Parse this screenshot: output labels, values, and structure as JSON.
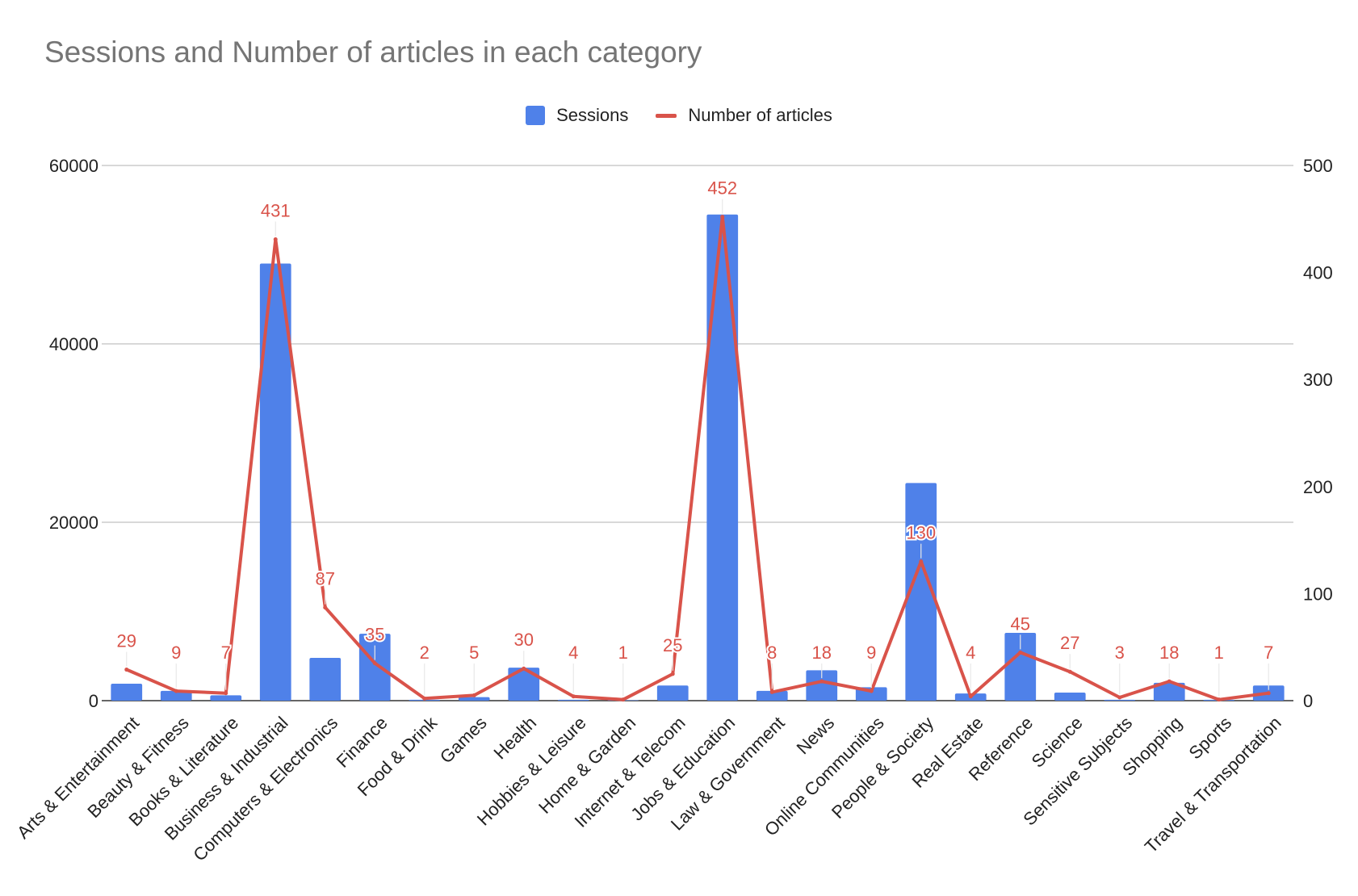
{
  "chart_data": {
    "type": "bar",
    "title": "Sessions and Number of articles in each category",
    "categories": [
      "Arts & Entertainment",
      "Beauty & Fitness",
      "Books & Literature",
      "Business & Industrial",
      "Computers & Electronics",
      "Finance",
      "Food & Drink",
      "Games",
      "Health",
      "Hobbies & Leisure",
      "Home & Garden",
      "Internet & Telecom",
      "Jobs & Education",
      "Law & Government",
      "News",
      "Online Communities",
      "People & Society",
      "Real Estate",
      "Reference",
      "Science",
      "Sensitive Subjects",
      "Shopping",
      "Sports",
      "Travel & Transportation"
    ],
    "series": [
      {
        "name": "Sessions",
        "type": "bar",
        "axis": "left",
        "color": "#4f81e9",
        "values": [
          1900,
          1100,
          600,
          49000,
          4800,
          7500,
          100,
          400,
          3700,
          100,
          50,
          1700,
          54500,
          1100,
          3400,
          1500,
          24400,
          800,
          7600,
          900,
          100,
          2000,
          100,
          1700
        ]
      },
      {
        "name": "Number of articles",
        "type": "line",
        "axis": "right",
        "color": "#d9534a",
        "values": [
          29,
          9,
          7,
          431,
          87,
          35,
          2,
          5,
          30,
          4,
          1,
          25,
          452,
          8,
          18,
          9,
          130,
          4,
          45,
          27,
          3,
          18,
          1,
          7
        ],
        "data_labels": [
          "29",
          "9",
          "7",
          "431",
          "87",
          "35",
          "2",
          "5",
          "30",
          "4",
          "1",
          "25",
          "452",
          "8",
          "18",
          "9",
          "130",
          "4",
          "45",
          "27",
          "3",
          "18",
          "1",
          "7"
        ]
      }
    ],
    "y_left": {
      "min": 0,
      "max": 60000,
      "ticks": [
        "0",
        "20000",
        "40000",
        "60000"
      ]
    },
    "y_right": {
      "min": 0,
      "max": 500,
      "ticks": [
        "0",
        "100",
        "200",
        "300",
        "400",
        "500"
      ]
    },
    "grid": true,
    "legend_position": "top-center"
  }
}
